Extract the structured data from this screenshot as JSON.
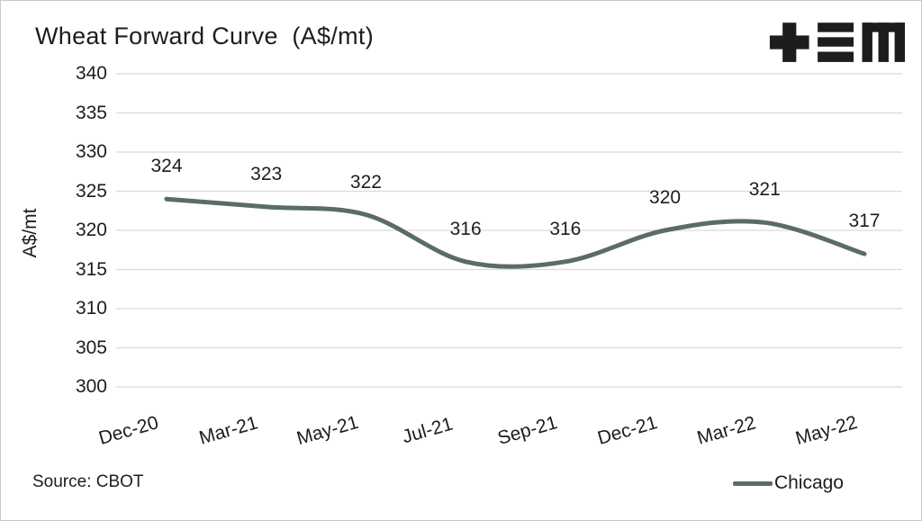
{
  "title": "Wheat Forward Curve  (A$/mt)",
  "logo_name": "tem-logo",
  "source_text": "Source: CBOT",
  "legend": {
    "label": "Chicago"
  },
  "colors": {
    "line": "#5a6c68",
    "grid": "#dbdbdb",
    "text": "#1d1d1b",
    "logo": "#1d1d1b",
    "frame_border": "#c9c9c9"
  },
  "chart_data": {
    "type": "line",
    "title": "Wheat Forward Curve (A$/mt)",
    "categories": [
      "Dec-20",
      "Mar-21",
      "May-21",
      "Jul-21",
      "Sep-21",
      "Dec-21",
      "Mar-22",
      "May-22"
    ],
    "series": [
      {
        "name": "Chicago",
        "values": [
          324,
          323,
          322,
          316,
          316,
          320,
          321,
          317
        ]
      }
    ],
    "xlabel": "",
    "ylabel": "A$/mt",
    "ylim": [
      300,
      340
    ],
    "yticks": [
      340,
      335,
      330,
      325,
      320,
      315,
      310,
      305,
      300
    ],
    "grid": "horizontal",
    "smooth": true,
    "data_labels": true,
    "legend_position": "bottom-right",
    "source": "CBOT"
  }
}
